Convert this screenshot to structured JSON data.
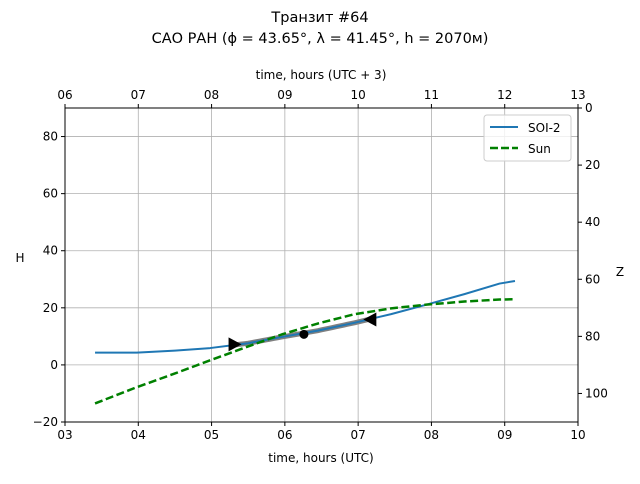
{
  "chart_data": {
    "type": "line",
    "title": "Транзит #64",
    "subtitle": "САО РАН (ϕ = 43.65°, λ = 41.45°, h = 2070м)",
    "xlabel": "time, hours (UTC)",
    "xlabel_top": "time, hours (UTC + 3)",
    "ylabel": "H",
    "ylabel_right": "Z",
    "xlim": [
      3,
      10
    ],
    "ylim": [
      -20,
      90
    ],
    "ylim_right": [
      110,
      0
    ],
    "x_ticks": [
      "03",
      "04",
      "05",
      "06",
      "07",
      "08",
      "09",
      "10"
    ],
    "x_ticks_top": [
      "06",
      "07",
      "08",
      "09",
      "10",
      "11",
      "12",
      "13"
    ],
    "y_ticks": [
      "−20",
      "0",
      "20",
      "40",
      "60",
      "80"
    ],
    "y_ticks_right": [
      "0",
      "20",
      "40",
      "60",
      "80",
      "100"
    ],
    "grid": true,
    "legend": {
      "position": "top-right",
      "entries": [
        "SOI-2",
        "Sun"
      ]
    },
    "series": [
      {
        "name": "SOI-2",
        "color": "#1f77b4",
        "style": "solid",
        "x": [
          3.41,
          3.98,
          4.5,
          4.98,
          5.5,
          5.96,
          6.45,
          6.94,
          7.45,
          7.93,
          8.45,
          8.93,
          9.14
        ],
        "y": [
          4.3,
          4.3,
          5.0,
          5.9,
          7.6,
          9.8,
          12.0,
          14.7,
          17.8,
          21.1,
          24.8,
          28.5,
          29.4
        ]
      },
      {
        "name": "Sun",
        "color": "#008000",
        "style": "dashed",
        "x": [
          3.41,
          3.98,
          4.5,
          4.98,
          5.47,
          5.96,
          6.45,
          6.94,
          7.45,
          7.93,
          8.45,
          8.93,
          9.14
        ],
        "y": [
          -13.5,
          -7.8,
          -3.0,
          1.6,
          6.2,
          10.7,
          14.5,
          17.7,
          19.8,
          21.1,
          22.2,
          22.9,
          23.0
        ]
      }
    ],
    "transit_segment": {
      "color": "#808080",
      "x_start": 5.3,
      "x_end": 7.18
    },
    "markers": [
      {
        "name": "ingress",
        "shape": "triangle-right",
        "x": 5.3,
        "y": 7.2
      },
      {
        "name": "mid-transit",
        "shape": "circle",
        "x": 6.26,
        "y": 10.7
      },
      {
        "name": "egress",
        "shape": "triangle-left",
        "x": 7.18,
        "y": 15.9
      }
    ]
  }
}
